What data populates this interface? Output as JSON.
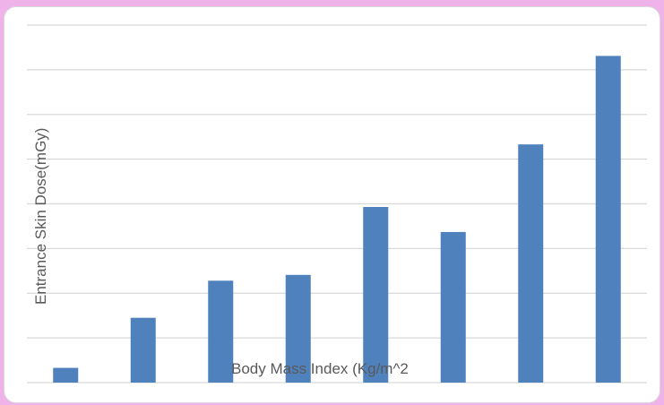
{
  "chart_data": {
    "type": "bar",
    "title": "",
    "xlabel": "Body Mass Index (Kg/m^2",
    "ylabel": "Entrance Skin Dose(mGy)",
    "categories": [
      "",
      "",
      "",
      "",
      "",
      "",
      "",
      ""
    ],
    "values": [
      0.33,
      1.45,
      2.28,
      2.41,
      3.93,
      3.37,
      5.33,
      7.31
    ],
    "ylim": [
      0,
      8
    ],
    "grid": true,
    "bar_color": "#4f81bd",
    "grid_color": "#d9d9d9"
  }
}
